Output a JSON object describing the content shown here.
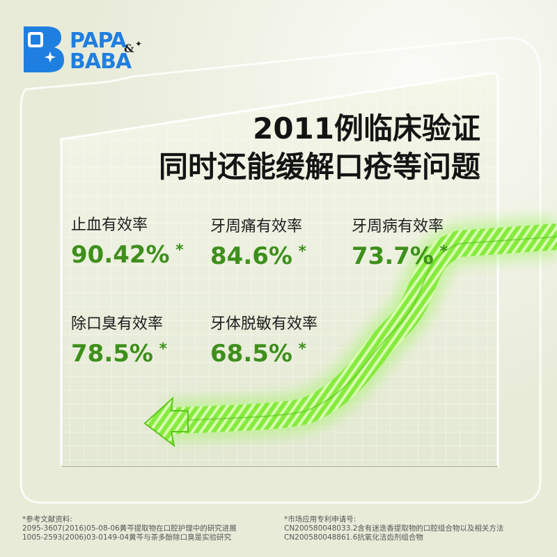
{
  "brand": {
    "line1": "PAPA",
    "line2": "BABA",
    "amp": "&",
    "star": "✦",
    "colors": {
      "blue": "#1f7fe0",
      "green": "#3e8f1c",
      "arrow": "#7ee83c"
    }
  },
  "headline": {
    "line1": "2011例临床验证",
    "line2": "同时还能缓解口疮等问题"
  },
  "stats": [
    {
      "label": "止血有效率",
      "value": "90.42%",
      "mark": "*"
    },
    {
      "label": "牙周痛有效率",
      "value": "84.6%",
      "mark": "*"
    },
    {
      "label": "牙周病有效率",
      "value": "73.7%",
      "mark": "*"
    },
    {
      "label": "除口臭有效率",
      "value": "78.5%",
      "mark": "*"
    },
    {
      "label": "牙体脱敏有效率",
      "value": "68.5%",
      "mark": "*"
    }
  ],
  "references": {
    "left": {
      "title": "*参考文献资料:",
      "items": [
        "2095-3607(2016)05-08-06黄芩提取物在口腔护理中的研究进展",
        "1005-2593(2006)03-0149-04黄芩与茶多酚除口臭是实验研究"
      ]
    },
    "right": {
      "title": "*市场应用专利申请号:",
      "items": [
        "CN200580048033.2含有迷迭香提取物的口腔组合物以及相关方法",
        "CN200580048861.6抗氧化洁齿剂组合物"
      ]
    }
  }
}
